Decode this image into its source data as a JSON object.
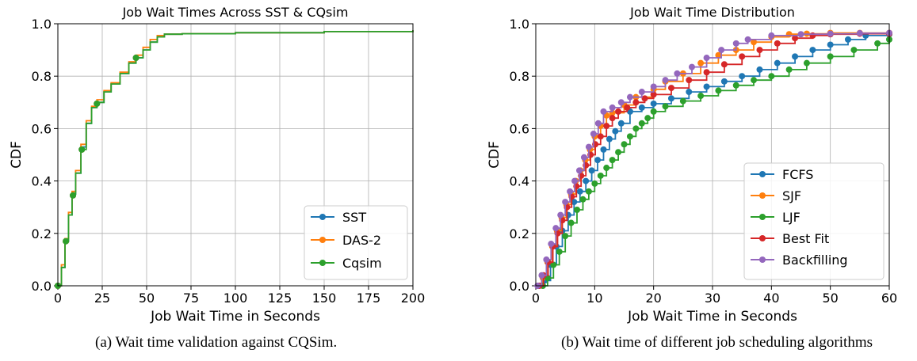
{
  "chart_data": [
    {
      "type": "line",
      "title": "Job Wait Times Across SST & CQsim",
      "xlabel": "Job Wait Time in Seconds",
      "ylabel": "CDF",
      "xlim": [
        0,
        200
      ],
      "ylim": [
        0,
        1.0
      ],
      "xticks": [
        0,
        25,
        50,
        75,
        100,
        125,
        150,
        175,
        200
      ],
      "yticks": [
        0.0,
        0.2,
        0.4,
        0.6,
        0.8,
        1.0
      ],
      "xtick_labels": [
        "0",
        "25",
        "50",
        "75",
        "100",
        "125",
        "150",
        "175",
        "200"
      ],
      "ytick_labels": [
        "0.0",
        "0.2",
        "0.4",
        "0.6",
        "0.8",
        "1.0"
      ],
      "grid": true,
      "legend_position": "bottom-right",
      "series": [
        {
          "name": "SST",
          "color": "#1f77b4",
          "x": [
            0,
            2,
            4,
            6,
            8,
            10,
            13,
            16,
            19,
            22,
            26,
            30,
            35,
            40,
            44,
            48,
            52,
            56,
            60,
            70,
            100,
            150,
            200
          ],
          "y": [
            0,
            0.07,
            0.17,
            0.27,
            0.35,
            0.43,
            0.53,
            0.62,
            0.68,
            0.7,
            0.74,
            0.77,
            0.81,
            0.85,
            0.87,
            0.9,
            0.93,
            0.95,
            0.96,
            0.962,
            0.966,
            0.97,
            0.975
          ]
        },
        {
          "name": "DAS-2",
          "color": "#ff7f0e",
          "x": [
            0,
            2,
            4,
            6,
            8,
            10,
            13,
            16,
            19,
            22,
            26,
            30,
            35,
            40,
            44,
            48,
            52,
            56,
            60,
            70,
            100,
            150,
            200
          ],
          "y": [
            0,
            0.08,
            0.18,
            0.28,
            0.36,
            0.44,
            0.54,
            0.63,
            0.685,
            0.71,
            0.745,
            0.775,
            0.815,
            0.855,
            0.88,
            0.91,
            0.94,
            0.955,
            0.96,
            0.962,
            0.966,
            0.97,
            0.975
          ]
        },
        {
          "name": "Cqsim",
          "color": "#2ca02c",
          "x": [
            0,
            2,
            4,
            6,
            8,
            10,
            13,
            16,
            19,
            22,
            26,
            30,
            35,
            40,
            44,
            48,
            52,
            56,
            60,
            70,
            100,
            150,
            200
          ],
          "y": [
            0,
            0.07,
            0.17,
            0.27,
            0.35,
            0.43,
            0.52,
            0.62,
            0.68,
            0.7,
            0.74,
            0.77,
            0.81,
            0.85,
            0.87,
            0.9,
            0.93,
            0.95,
            0.96,
            0.962,
            0.966,
            0.97,
            0.975
          ]
        }
      ],
      "markers": {
        "x": [
          0,
          4.5,
          8.5,
          13.5,
          22,
          44
        ],
        "y": [
          0,
          0.17,
          0.345,
          0.52,
          0.695,
          0.87
        ]
      }
    },
    {
      "type": "line",
      "title": "Job Wait Time Distribution",
      "xlabel": "Job Wait Time in Seconds",
      "ylabel": "CDF",
      "xlim": [
        0,
        60
      ],
      "ylim": [
        0,
        1.0
      ],
      "xticks": [
        0,
        10,
        20,
        30,
        40,
        50,
        60
      ],
      "yticks": [
        0.0,
        0.2,
        0.4,
        0.6,
        0.8,
        1.0
      ],
      "xtick_labels": [
        "0",
        "10",
        "20",
        "30",
        "40",
        "50",
        "60"
      ],
      "ytick_labels": [
        "0.0",
        "0.2",
        "0.4",
        "0.6",
        "0.8",
        "1.0"
      ],
      "grid": true,
      "legend_position": "bottom-right",
      "series": [
        {
          "name": "FCFS",
          "color": "#1f77b4",
          "x": [
            0.5,
            1.5,
            2.5,
            3.5,
            4.5,
            5.5,
            6.5,
            7.5,
            8.5,
            9.5,
            10.5,
            11.5,
            12.5,
            13.5,
            14.5,
            16,
            18,
            20,
            23,
            26,
            29,
            32,
            35,
            38,
            41,
            44,
            47,
            50,
            53,
            56,
            60
          ],
          "y": [
            0,
            0.02,
            0.08,
            0.15,
            0.21,
            0.27,
            0.32,
            0.36,
            0.4,
            0.44,
            0.48,
            0.52,
            0.56,
            0.59,
            0.62,
            0.665,
            0.68,
            0.695,
            0.715,
            0.74,
            0.76,
            0.78,
            0.8,
            0.825,
            0.85,
            0.875,
            0.9,
            0.92,
            0.94,
            0.955,
            0.96
          ]
        },
        {
          "name": "SJF",
          "color": "#ff7f0e",
          "x": [
            0.5,
            1.2,
            2,
            2.8,
            3.6,
            4.4,
            5.2,
            6,
            6.8,
            7.6,
            8.4,
            9.2,
            10,
            11,
            12,
            13,
            15,
            17,
            20,
            22,
            25,
            28,
            31,
            34,
            37,
            40,
            43,
            46,
            50,
            55,
            60
          ],
          "y": [
            0,
            0.03,
            0.09,
            0.15,
            0.21,
            0.26,
            0.31,
            0.35,
            0.4,
            0.44,
            0.48,
            0.52,
            0.57,
            0.61,
            0.65,
            0.66,
            0.69,
            0.72,
            0.75,
            0.78,
            0.81,
            0.85,
            0.88,
            0.9,
            0.93,
            0.95,
            0.96,
            0.962,
            0.965,
            0.965,
            0.965
          ]
        },
        {
          "name": "LJF",
          "color": "#2ca02c",
          "x": [
            1.2,
            2,
            3,
            4,
            5,
            6,
            7,
            8,
            9,
            10,
            11,
            12,
            13,
            14,
            15,
            16,
            17,
            18,
            19,
            20,
            22,
            25,
            28,
            31,
            34,
            37,
            40,
            43,
            46,
            50,
            54,
            58,
            60
          ],
          "y": [
            0,
            0.03,
            0.08,
            0.13,
            0.19,
            0.24,
            0.29,
            0.33,
            0.36,
            0.39,
            0.42,
            0.45,
            0.48,
            0.51,
            0.54,
            0.57,
            0.6,
            0.62,
            0.64,
            0.665,
            0.685,
            0.705,
            0.725,
            0.745,
            0.765,
            0.785,
            0.8,
            0.825,
            0.85,
            0.875,
            0.9,
            0.925,
            0.94
          ]
        },
        {
          "name": "Best Fit",
          "color": "#d62728",
          "x": [
            0.6,
            1.3,
            2.1,
            2.9,
            3.7,
            4.5,
            5.3,
            6.1,
            6.9,
            7.7,
            8.5,
            9.3,
            10.1,
            11,
            12,
            13,
            14,
            15.5,
            17,
            18.5,
            20,
            23,
            26,
            29,
            32,
            35,
            38,
            41,
            44,
            47,
            50,
            55,
            60
          ],
          "y": [
            0,
            0.04,
            0.09,
            0.15,
            0.2,
            0.25,
            0.3,
            0.34,
            0.38,
            0.42,
            0.46,
            0.5,
            0.54,
            0.57,
            0.61,
            0.64,
            0.665,
            0.68,
            0.7,
            0.715,
            0.73,
            0.755,
            0.785,
            0.815,
            0.845,
            0.875,
            0.9,
            0.925,
            0.945,
            0.955,
            0.96,
            0.962,
            0.962
          ]
        },
        {
          "name": "Backfilling",
          "color": "#9467bd",
          "x": [
            0.3,
            1,
            1.8,
            2.6,
            3.4,
            4.2,
            5,
            5.8,
            6.6,
            7.4,
            8.2,
            9,
            9.8,
            10.6,
            11.5,
            13,
            14.5,
            16,
            18,
            20,
            22,
            24,
            26.5,
            29,
            31.5,
            34,
            36,
            40,
            45,
            50,
            55,
            60
          ],
          "y": [
            0,
            0.04,
            0.1,
            0.16,
            0.22,
            0.27,
            0.32,
            0.36,
            0.4,
            0.44,
            0.49,
            0.53,
            0.58,
            0.62,
            0.665,
            0.68,
            0.7,
            0.72,
            0.74,
            0.76,
            0.785,
            0.81,
            0.835,
            0.87,
            0.9,
            0.925,
            0.94,
            0.955,
            0.96,
            0.962,
            0.964,
            0.965
          ]
        }
      ]
    }
  ],
  "captions": {
    "a": "(a) Wait time validation against CQSim.",
    "b": "(b) Wait time of different job scheduling algorithms"
  }
}
